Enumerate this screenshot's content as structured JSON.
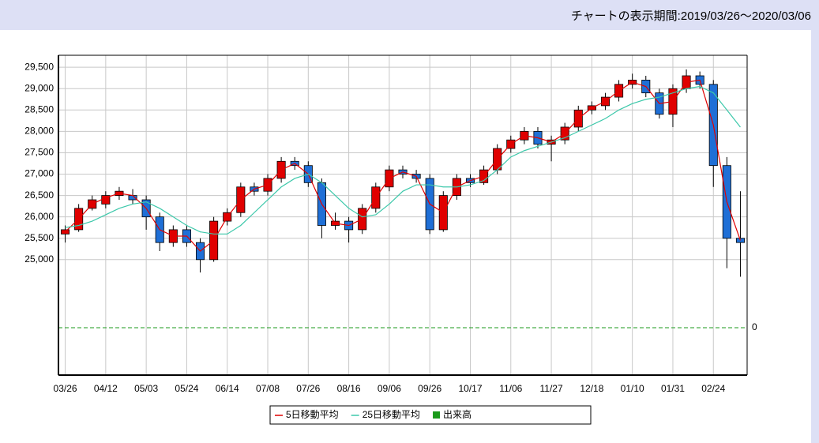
{
  "header": {
    "title": "チャートの表示期間:2019/03/26～2020/03/06"
  },
  "chart_data": {
    "type": "candlestick",
    "categories": [
      "03/26",
      null,
      null,
      "04/12",
      null,
      null,
      "05/03",
      null,
      null,
      "05/24",
      null,
      null,
      "06/14",
      null,
      null,
      "07/08",
      null,
      null,
      "07/26",
      null,
      null,
      "08/16",
      null,
      null,
      "09/06",
      null,
      null,
      "09/26",
      null,
      null,
      "10/17",
      null,
      null,
      "11/06",
      null,
      null,
      "11/27",
      null,
      null,
      "12/18",
      null,
      null,
      "01/10",
      null,
      null,
      "01/31",
      null,
      null,
      "02/24",
      null,
      null
    ],
    "open": [
      25600,
      25700,
      26200,
      26300,
      26500,
      26500,
      26400,
      26000,
      25400,
      25700,
      25400,
      25000,
      25900,
      26100,
      26700,
      26600,
      26900,
      27300,
      27200,
      26800,
      25800,
      25900,
      25700,
      26200,
      26700,
      27100,
      27000,
      26900,
      25700,
      26500,
      26900,
      26800,
      27100,
      27600,
      27800,
      28000,
      27700,
      27800,
      28100,
      28500,
      28600,
      28800,
      29100,
      29200,
      28900,
      28400,
      29000,
      29300,
      29100,
      27200,
      25500
    ],
    "high": [
      25800,
      26300,
      26500,
      26600,
      26700,
      26650,
      26500,
      26100,
      25800,
      25800,
      25500,
      26000,
      26200,
      26800,
      26800,
      27000,
      27400,
      27400,
      27300,
      26900,
      26100,
      26000,
      26300,
      26800,
      27200,
      27200,
      27100,
      27000,
      26600,
      27000,
      27000,
      27200,
      27700,
      27900,
      28100,
      28100,
      27900,
      28200,
      28600,
      28700,
      28900,
      29200,
      29350,
      29300,
      29000,
      29100,
      29450,
      29400,
      29200,
      27400,
      26600
    ],
    "low": [
      25400,
      25650,
      26150,
      26200,
      26400,
      26300,
      25700,
      25200,
      25300,
      25300,
      24700,
      24950,
      25800,
      26000,
      26500,
      26500,
      26800,
      27100,
      26700,
      25500,
      25700,
      25400,
      25600,
      26100,
      26600,
      26900,
      26800,
      25600,
      25650,
      26400,
      26700,
      26750,
      27000,
      27500,
      27700,
      27600,
      27300,
      27700,
      28000,
      28400,
      28500,
      28700,
      29000,
      28800,
      28300,
      28100,
      28900,
      29000,
      26700,
      24800,
      24600
    ],
    "close": [
      25700,
      26200,
      26400,
      26500,
      26600,
      26400,
      26000,
      25400,
      25700,
      25400,
      25000,
      25900,
      26100,
      26700,
      26600,
      26900,
      27300,
      27200,
      26800,
      25800,
      25900,
      25700,
      26200,
      26700,
      27100,
      27000,
      26900,
      25700,
      26500,
      26900,
      26800,
      27100,
      27600,
      27800,
      28000,
      27700,
      27800,
      28100,
      28500,
      28600,
      28800,
      29100,
      29200,
      28900,
      28400,
      29000,
      29300,
      29100,
      27200,
      25500,
      25400
    ],
    "up_color": "#e00000",
    "down_color": "#1f6fd6",
    "series": [
      {
        "name": "5日移動平均",
        "color": "#e00000",
        "values": [
          25650,
          25950,
          26300,
          26450,
          26550,
          26500,
          26200,
          25700,
          25550,
          25550,
          25200,
          25450,
          26000,
          26400,
          26650,
          26750,
          27100,
          27250,
          27000,
          26300,
          25850,
          25800,
          25950,
          26450,
          26900,
          27050,
          26950,
          26300,
          26100,
          26700,
          26850,
          26950,
          27350,
          27700,
          27900,
          27850,
          27750,
          27950,
          28300,
          28550,
          28700,
          28950,
          29150,
          29050,
          28650,
          28700,
          29150,
          29200,
          28150,
          26350,
          25450
        ]
      },
      {
        "name": "25日移動平均",
        "color": "#3cc8aa",
        "values": [
          25750,
          25800,
          25900,
          26050,
          26200,
          26300,
          26350,
          26200,
          26000,
          25800,
          25650,
          25600,
          25600,
          25800,
          26100,
          26400,
          26700,
          26900,
          27000,
          26800,
          26500,
          26200,
          26000,
          26050,
          26300,
          26600,
          26750,
          26750,
          26700,
          26700,
          26750,
          26850,
          27100,
          27400,
          27550,
          27650,
          27750,
          27850,
          28000,
          28150,
          28300,
          28500,
          28650,
          28750,
          28800,
          28900,
          29000,
          29050,
          28900,
          28500,
          28100
        ]
      }
    ],
    "volume": {
      "name": "出来高",
      "color": "#1a9a1a"
    },
    "ylim": [
      22300,
      29780
    ],
    "yticks": [
      {
        "value": 25000,
        "label": "25,000"
      },
      {
        "value": 25500,
        "label": "25,500"
      },
      {
        "value": 26000,
        "label": "26,000"
      },
      {
        "value": 26500,
        "label": "26,500"
      },
      {
        "value": 27000,
        "label": "27,000"
      },
      {
        "value": 27500,
        "label": "27,500"
      },
      {
        "value": 28000,
        "label": "28,000"
      },
      {
        "value": 28500,
        "label": "28,500"
      },
      {
        "value": 29000,
        "label": "29,000"
      },
      {
        "value": 29500,
        "label": "29,500"
      }
    ],
    "y2lim": [
      -100,
      575
    ],
    "y2ticks": [
      0
    ],
    "grid": true
  }
}
